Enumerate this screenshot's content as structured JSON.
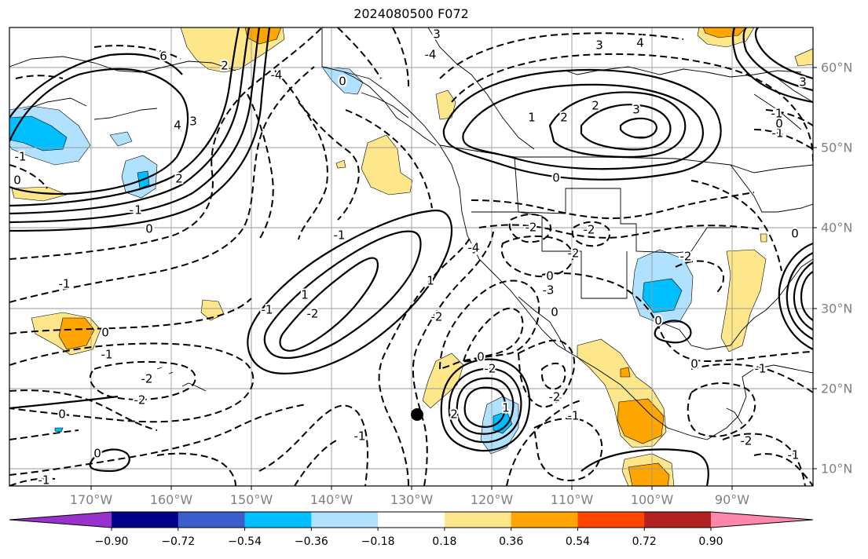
{
  "title": "2024080500 F072",
  "map": {
    "lon_labels": [
      "170°W",
      "160°W",
      "150°W",
      "140°W",
      "130°W",
      "120°W",
      "110°W",
      "100°W",
      "90°W"
    ],
    "lat_labels": [
      "60°N",
      "50°N",
      "40°N",
      "30°N",
      "20°N",
      "10°N"
    ],
    "lon_range": [
      -180,
      -80
    ],
    "lat_range": [
      7.5,
      65
    ]
  },
  "colorbar": {
    "labels": [
      "−0.90",
      "−0.72",
      "−0.54",
      "−0.36",
      "−0.18",
      "0.18",
      "0.36",
      "0.54",
      "0.72",
      "0.90"
    ],
    "colors": [
      "#9932cc",
      "#00008b",
      "#3a5fcd",
      "#00bfff",
      "#b0e2ff",
      "#ffffff",
      "#fee68b",
      "#ffa500",
      "#ff4500",
      "#b22222",
      "#ff88aa"
    ]
  },
  "contour_labels": [
    "3",
    "4",
    "3",
    "2",
    "3",
    "1",
    "2",
    "0",
    "-2",
    "-2",
    "-2",
    "0",
    "-1",
    "-2",
    "-4",
    "6",
    "4",
    "3",
    "2",
    "-4",
    "-1",
    "0",
    "-1",
    "1",
    "-1",
    "0",
    "-1",
    "0",
    "-2",
    "-2",
    "0",
    "-1",
    "0",
    "-1",
    "-2",
    "1",
    "-1",
    "-1",
    "-2",
    "-4",
    "0",
    "1",
    "2",
    "0",
    "-2",
    "0",
    "-2",
    "-1",
    "0",
    "-2",
    "0",
    "-1",
    "-1",
    "0",
    "-1",
    "-1",
    "0",
    "3",
    "2",
    "1",
    "-3"
  ],
  "markers": [
    {
      "name": "storm-center",
      "lon": -129.5,
      "lat": 16.7
    }
  ]
}
